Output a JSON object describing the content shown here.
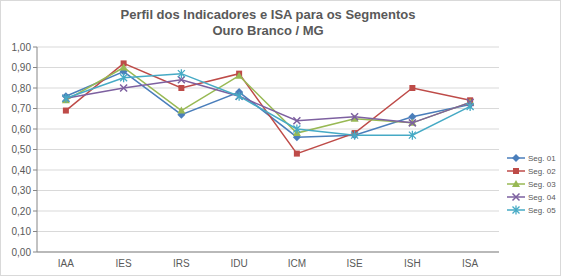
{
  "chart_data": {
    "type": "line",
    "title": "Perfil dos Indicadores e ISA para os Segmentos",
    "subtitle": "Ouro Branco / MG",
    "categories": [
      "IAA",
      "IES",
      "IRS",
      "IDU",
      "ICM",
      "ISE",
      "ISH",
      "ISA"
    ],
    "series": [
      {
        "name": "Seg. 01",
        "color": "#4a7ebb",
        "marker": "diamond",
        "values": [
          0.76,
          0.88,
          0.67,
          0.78,
          0.56,
          0.57,
          0.66,
          0.72
        ]
      },
      {
        "name": "Seg. 02",
        "color": "#be4b48",
        "marker": "square",
        "values": [
          0.69,
          0.92,
          0.8,
          0.87,
          0.48,
          0.58,
          0.8,
          0.74
        ]
      },
      {
        "name": "Seg. 03",
        "color": "#98b954",
        "marker": "triangle",
        "values": [
          0.74,
          0.9,
          0.69,
          0.86,
          0.58,
          0.65,
          0.63,
          0.73
        ]
      },
      {
        "name": "Seg. 04",
        "color": "#7d60a0",
        "marker": "x",
        "values": [
          0.75,
          0.8,
          0.84,
          0.76,
          0.64,
          0.66,
          0.63,
          0.73
        ]
      },
      {
        "name": "Seg. 05",
        "color": "#46aac5",
        "marker": "star",
        "values": [
          0.75,
          0.85,
          0.87,
          0.76,
          0.6,
          0.57,
          0.57,
          0.71
        ]
      }
    ],
    "ylim": [
      0,
      1
    ],
    "yticks": [
      {
        "value": 0,
        "label": "0,00"
      },
      {
        "value": 0.1,
        "label": "0,10"
      },
      {
        "value": 0.2,
        "label": "0,20"
      },
      {
        "value": 0.3,
        "label": "0,30"
      },
      {
        "value": 0.4,
        "label": "0,40"
      },
      {
        "value": 0.5,
        "label": "0,50"
      },
      {
        "value": 0.6,
        "label": "0,60"
      },
      {
        "value": 0.7,
        "label": "0,70"
      },
      {
        "value": 0.8,
        "label": "0,80"
      },
      {
        "value": 0.9,
        "label": "0,90"
      },
      {
        "value": 1,
        "label": "1,00"
      }
    ],
    "grid": true,
    "legend": "right"
  }
}
